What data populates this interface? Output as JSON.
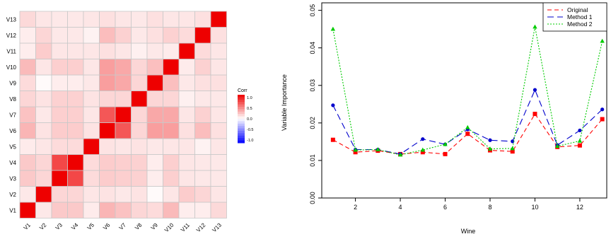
{
  "chart_data": [
    {
      "type": "heatmap",
      "title": "",
      "xlabel": "",
      "ylabel": "",
      "row_labels": [
        "V1",
        "V2",
        "V3",
        "V4",
        "V5",
        "V6",
        "V7",
        "V8",
        "V9",
        "V10",
        "V11",
        "V12",
        "V13"
      ],
      "col_labels": [
        "V1",
        "V2",
        "V3",
        "V4",
        "V5",
        "V6",
        "V7",
        "V8",
        "V9",
        "V10",
        "V11",
        "V12",
        "V13"
      ],
      "matrix": [
        [
          1.0,
          0.09,
          0.21,
          0.21,
          0.08,
          0.29,
          0.24,
          0.16,
          0.14,
          0.27,
          0.07,
          0.07,
          0.15
        ],
        [
          0.09,
          1.0,
          0.16,
          0.16,
          0.1,
          0.11,
          0.09,
          0.11,
          0.02,
          0.1,
          0.2,
          0.16,
          0.1
        ],
        [
          0.21,
          0.16,
          1.0,
          0.72,
          0.14,
          0.2,
          0.19,
          0.18,
          0.07,
          0.19,
          0.1,
          0.09,
          0.09
        ],
        [
          0.21,
          0.16,
          0.72,
          1.0,
          0.14,
          0.2,
          0.19,
          0.18,
          0.07,
          0.19,
          0.1,
          0.09,
          0.09
        ],
        [
          0.08,
          0.1,
          0.14,
          0.14,
          1.0,
          0.11,
          0.1,
          0.11,
          0.09,
          0.1,
          0.1,
          0.05,
          0.1
        ],
        [
          0.29,
          0.11,
          0.2,
          0.2,
          0.11,
          1.0,
          0.66,
          0.16,
          0.38,
          0.38,
          0.12,
          0.26,
          0.12
        ],
        [
          0.24,
          0.09,
          0.19,
          0.19,
          0.1,
          0.66,
          1.0,
          0.16,
          0.34,
          0.34,
          0.1,
          0.18,
          0.1
        ],
        [
          0.16,
          0.11,
          0.18,
          0.18,
          0.11,
          0.16,
          0.16,
          1.0,
          0.16,
          0.16,
          0.06,
          0.09,
          0.09
        ],
        [
          0.14,
          0.02,
          0.07,
          0.07,
          0.09,
          0.38,
          0.34,
          0.16,
          1.0,
          0.25,
          0.09,
          0.12,
          0.12
        ],
        [
          0.27,
          0.1,
          0.19,
          0.19,
          0.1,
          0.38,
          0.34,
          0.16,
          0.25,
          1.0,
          0.08,
          0.18,
          0.1
        ],
        [
          0.07,
          0.2,
          0.1,
          0.1,
          0.1,
          0.12,
          0.1,
          0.06,
          0.09,
          0.08,
          1.0,
          0.14,
          0.1
        ],
        [
          0.07,
          0.16,
          0.09,
          0.09,
          0.05,
          0.26,
          0.18,
          0.09,
          0.12,
          0.18,
          0.14,
          1.0,
          0.12
        ],
        [
          0.15,
          0.1,
          0.09,
          0.09,
          0.1,
          0.12,
          0.1,
          0.09,
          0.12,
          0.1,
          0.1,
          0.12,
          1.0
        ]
      ],
      "legend": {
        "title": "Corr",
        "ticks": [
          "1.0",
          "0.5",
          "0.0",
          "-0.5",
          "-1.0"
        ],
        "position": "right"
      },
      "colors": {
        "high": "#ee0000",
        "mid": "#ffffff",
        "low": "#0000ff",
        "grid": "#c8c8c8"
      }
    },
    {
      "type": "line",
      "title": "",
      "xlabel": "Wine",
      "ylabel": "Variable Importance",
      "xlim": [
        0.5,
        13.2
      ],
      "ylim": [
        0.0,
        0.052
      ],
      "x_ticks": [
        2,
        4,
        6,
        8,
        10,
        12
      ],
      "y_ticks": [
        0.0,
        0.01,
        0.02,
        0.03,
        0.04,
        0.05
      ],
      "x_tick_labels": [
        "2",
        "4",
        "6",
        "8",
        "10",
        "12"
      ],
      "y_tick_labels": [
        "0.00",
        "0.01",
        "0.02",
        "0.03",
        "0.04",
        "0.05"
      ],
      "grid": false,
      "legend_position": "top-right",
      "x": [
        1,
        2,
        3,
        4,
        5,
        6,
        7,
        8,
        9,
        10,
        11,
        12,
        13
      ],
      "series": [
        {
          "name": "Original",
          "color": "#ff0000",
          "dash": "6,4",
          "marker": "square",
          "values": [
            0.0155,
            0.0122,
            0.0126,
            0.0117,
            0.0122,
            0.0117,
            0.0171,
            0.0127,
            0.0124,
            0.0224,
            0.0136,
            0.014,
            0.021
          ]
        },
        {
          "name": "Method 1",
          "color": "#0000cc",
          "dash": "9,5",
          "marker": "circle",
          "values": [
            0.0247,
            0.0129,
            0.0129,
            0.0117,
            0.0157,
            0.0143,
            0.0183,
            0.0154,
            0.0151,
            0.0288,
            0.0141,
            0.018,
            0.0236
          ]
        },
        {
          "name": "Method 2",
          "color": "#00cc00",
          "dash": "2,2",
          "marker": "triangle",
          "values": [
            0.045,
            0.0128,
            0.0129,
            0.0115,
            0.0128,
            0.0143,
            0.0188,
            0.0131,
            0.0132,
            0.0456,
            0.0138,
            0.0152,
            0.0418
          ]
        }
      ]
    }
  ]
}
